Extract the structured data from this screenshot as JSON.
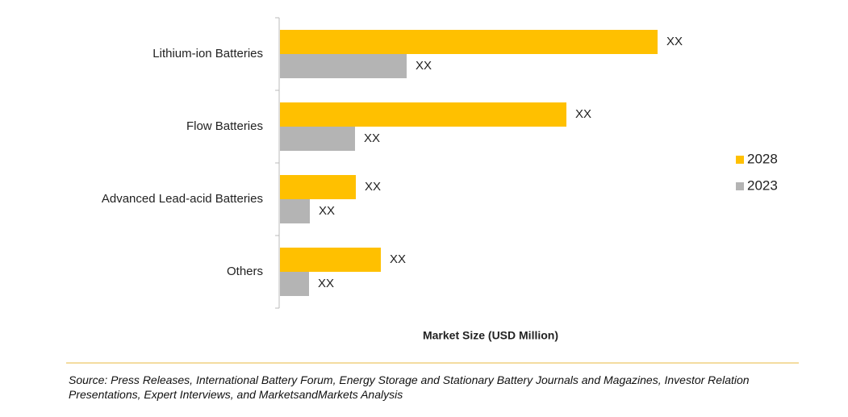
{
  "chart_data": {
    "type": "hbar",
    "x_label": "Market Size (USD Million)",
    "categories": [
      "Lithium-ion Batteries",
      "Flow Batteries",
      "Advanced Lead-acid Batteries",
      "Others"
    ],
    "series": [
      {
        "name": "2028",
        "color": "#FFC000",
        "values": [
          468,
          355,
          94,
          125
        ],
        "value_labels": [
          "XX",
          "XX",
          "XX",
          "XX"
        ]
      },
      {
        "name": "2023",
        "color": "#B4B4B4",
        "values": [
          157,
          93,
          37,
          36
        ],
        "value_labels": [
          "XX",
          "XX",
          "XX",
          "XX"
        ]
      }
    ],
    "legend": "right",
    "source": "Source: Press Releases, International Battery Forum, Energy Storage and Stationary Battery Journals and Magazines, Investor Relation Presentations, Expert Interviews, and MarketsandMarkets Analysis"
  }
}
